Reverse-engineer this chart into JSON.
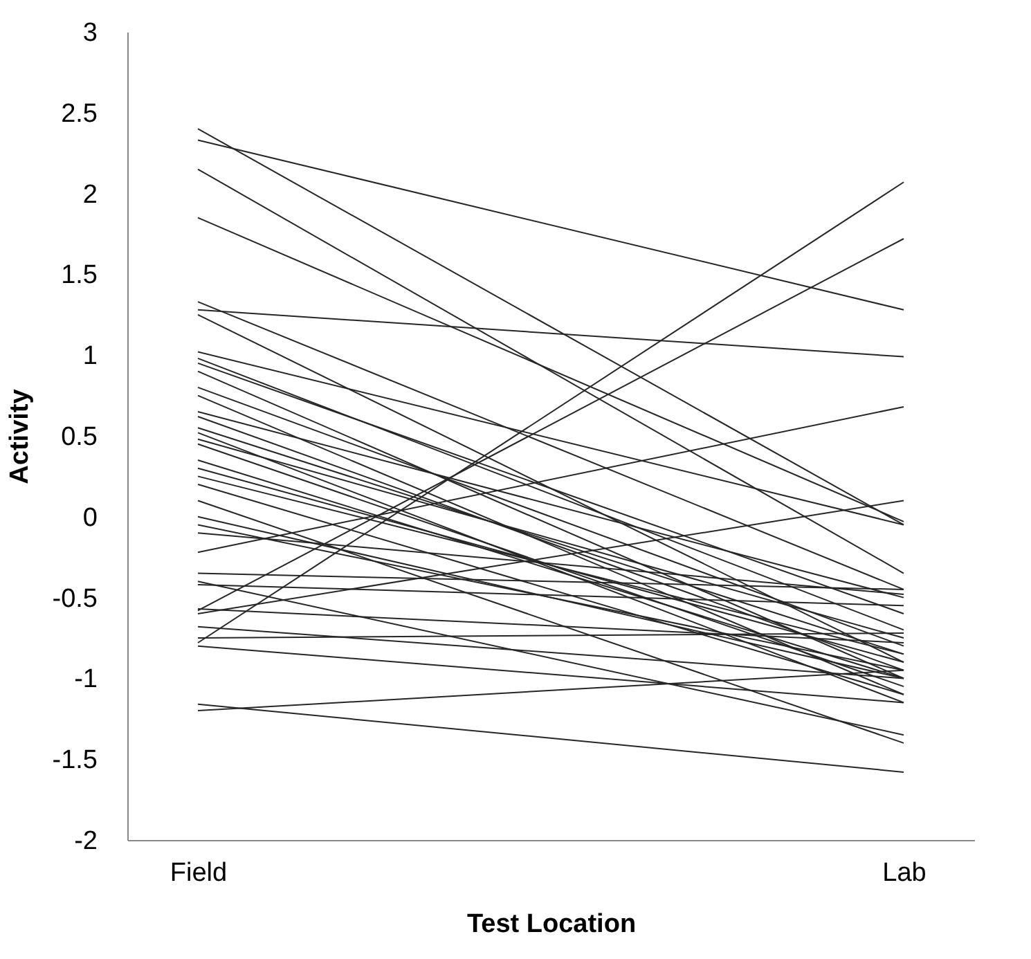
{
  "chart_data": {
    "type": "line",
    "xlabel": "Test Location",
    "ylabel": "Activity",
    "categories": [
      "Field",
      "Lab"
    ],
    "ylim": [
      -2,
      3
    ],
    "yticks": [
      -2,
      -1.5,
      -1,
      -0.5,
      0,
      0.5,
      1,
      1.5,
      2,
      2.5,
      3
    ],
    "grid": false,
    "legend": false,
    "marker": "none",
    "line_style": "solid",
    "series": [
      {
        "color": "#262626",
        "values": [
          2.4,
          -0.05
        ]
      },
      {
        "color": "#262626",
        "values": [
          2.33,
          1.28
        ]
      },
      {
        "color": "#262626",
        "values": [
          2.15,
          -0.35
        ]
      },
      {
        "color": "#262626",
        "values": [
          1.85,
          -0.03
        ]
      },
      {
        "color": "#262626",
        "values": [
          1.33,
          -0.45
        ]
      },
      {
        "color": "#262626",
        "values": [
          1.28,
          0.99
        ]
      },
      {
        "color": "#262626",
        "values": [
          1.25,
          -0.9
        ]
      },
      {
        "color": "#262626",
        "values": [
          1.02,
          -0.05
        ]
      },
      {
        "color": "#262626",
        "values": [
          0.98,
          -0.7
        ]
      },
      {
        "color": "#262626",
        "values": [
          0.95,
          -0.6
        ]
      },
      {
        "color": "#262626",
        "values": [
          0.9,
          -1.0
        ]
      },
      {
        "color": "#262626",
        "values": [
          0.8,
          -0.8
        ]
      },
      {
        "color": "#262626",
        "values": [
          0.75,
          -1.1
        ]
      },
      {
        "color": "#262626",
        "values": [
          0.65,
          -0.5
        ]
      },
      {
        "color": "#262626",
        "values": [
          0.62,
          -0.95
        ]
      },
      {
        "color": "#262626",
        "values": [
          0.55,
          -0.85
        ]
      },
      {
        "color": "#262626",
        "values": [
          0.52,
          -1.15
        ]
      },
      {
        "color": "#262626",
        "values": [
          0.48,
          -0.75
        ]
      },
      {
        "color": "#262626",
        "values": [
          0.45,
          -1.05
        ]
      },
      {
        "color": "#262626",
        "values": [
          0.35,
          -1.0
        ]
      },
      {
        "color": "#262626",
        "values": [
          0.3,
          -0.9
        ]
      },
      {
        "color": "#262626",
        "values": [
          0.25,
          -0.85
        ]
      },
      {
        "color": "#262626",
        "values": [
          0.2,
          -1.1
        ]
      },
      {
        "color": "#262626",
        "values": [
          0.1,
          -1.4
        ]
      },
      {
        "color": "#262626",
        "values": [
          0.0,
          -1.0
        ]
      },
      {
        "color": "#262626",
        "values": [
          -0.05,
          -0.95
        ]
      },
      {
        "color": "#262626",
        "values": [
          -0.1,
          -0.48
        ]
      },
      {
        "color": "#262626",
        "values": [
          -0.22,
          0.68
        ]
      },
      {
        "color": "#262626",
        "values": [
          -0.35,
          -0.45
        ]
      },
      {
        "color": "#262626",
        "values": [
          -0.4,
          -1.35
        ]
      },
      {
        "color": "#262626",
        "values": [
          -0.42,
          -0.55
        ]
      },
      {
        "color": "#262626",
        "values": [
          -0.58,
          1.72
        ]
      },
      {
        "color": "#262626",
        "values": [
          -0.6,
          0.1
        ]
      },
      {
        "color": "#262626",
        "values": [
          -0.57,
          -0.78
        ]
      },
      {
        "color": "#262626",
        "values": [
          -0.68,
          -1.0
        ]
      },
      {
        "color": "#262626",
        "values": [
          -0.75,
          -0.72
        ]
      },
      {
        "color": "#262626",
        "values": [
          -0.78,
          2.07
        ]
      },
      {
        "color": "#262626",
        "values": [
          -0.8,
          -1.15
        ]
      },
      {
        "color": "#262626",
        "values": [
          -1.16,
          -1.58
        ]
      },
      {
        "color": "#262626",
        "values": [
          -1.2,
          -0.95
        ]
      }
    ]
  }
}
